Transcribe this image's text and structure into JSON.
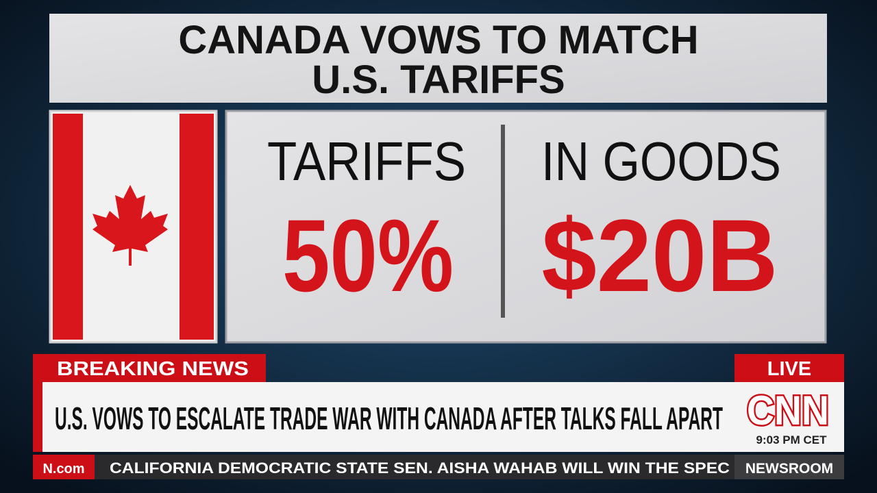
{
  "graphic": {
    "title_lines": [
      "CANADA VOWS TO MATCH",
      "U.S. TARIFFS"
    ],
    "stats": [
      {
        "label": "TARIFFS",
        "value": "50%"
      },
      {
        "label": "IN GOODS",
        "value": "$20B"
      }
    ]
  },
  "lower_third": {
    "tag": "BREAKING NEWS",
    "live": "LIVE",
    "headline": "U.S. VOWS TO ESCALATE TRADE WAR WITH CANADA AFTER TALKS FALL APART",
    "logo": "CNN",
    "time": "9:03 PM CET"
  },
  "ticker": {
    "site": "N.com",
    "text": "CALIFORNIA DEMOCRATIC STATE SEN. AISHA WAHAB WILL WIN THE SPEC",
    "show": "NEWSROOM"
  }
}
